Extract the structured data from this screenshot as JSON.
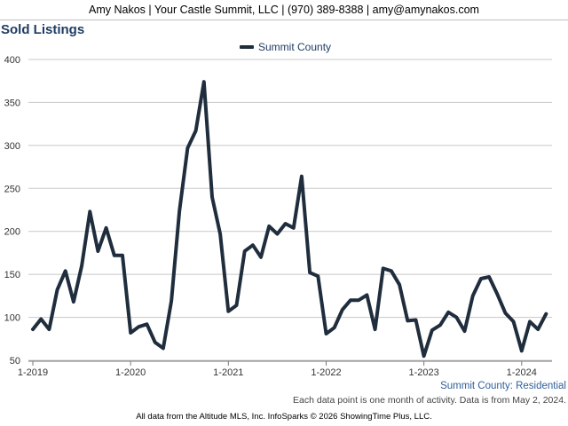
{
  "header": {
    "text": "Amy Nakos | Your Castle Summit, LLC | (970) 389-8388 | amy@amynakos.com"
  },
  "chart_data": {
    "type": "line",
    "title": "Sold Listings",
    "xlabel": "",
    "ylabel": "",
    "ylim": [
      50,
      400
    ],
    "y_ticks": [
      50,
      100,
      150,
      200,
      250,
      300,
      350,
      400
    ],
    "x_ticks": [
      {
        "label": "1-2019",
        "index": 0
      },
      {
        "label": "1-2020",
        "index": 12
      },
      {
        "label": "1-2021",
        "index": 24
      },
      {
        "label": "1-2022",
        "index": 36
      },
      {
        "label": "1-2023",
        "index": 48
      },
      {
        "label": "1-2024",
        "index": 60
      }
    ],
    "grid": "horizontal",
    "legend_position": "top-center",
    "series": [
      {
        "name": "Summit County",
        "color": "#1f2d3d",
        "start": "1-2019",
        "frequency": "monthly",
        "values": [
          86,
          98,
          86,
          132,
          154,
          118,
          160,
          223,
          177,
          204,
          172,
          172,
          82,
          89,
          92,
          71,
          64,
          119,
          224,
          297,
          317,
          374,
          240,
          197,
          107,
          114,
          177,
          184,
          170,
          206,
          197,
          209,
          204,
          264,
          152,
          148,
          81,
          88,
          109,
          120,
          120,
          126,
          86,
          157,
          154,
          138,
          96,
          97,
          55,
          85,
          91,
          106,
          100,
          84,
          125,
          145,
          147,
          127,
          105,
          95,
          61,
          95,
          86,
          104
        ]
      }
    ]
  },
  "footer": {
    "source": "Summit County: Residential",
    "note": "Each data point is one month of activity. Data is from May 2, 2024.",
    "copyright": "All data from the Altitude MLS, Inc. InfoSparks © 2026 ShowingTime Plus, LLC."
  }
}
